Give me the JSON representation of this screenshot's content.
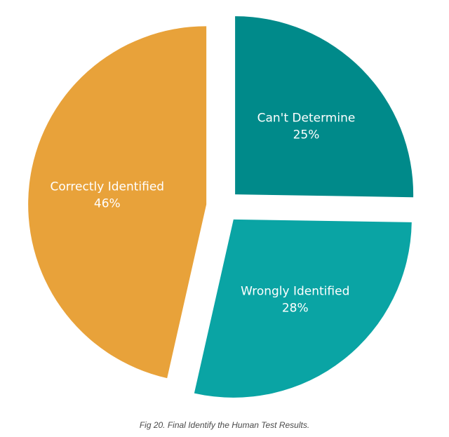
{
  "chart_data": {
    "type": "pie",
    "title": "",
    "start": "top, clockwise",
    "exploded": true,
    "slices": [
      {
        "label": "Can't Determine",
        "value": 25,
        "value_label": "25%",
        "color": "#008a8a"
      },
      {
        "label": "Wrongly Identified",
        "value": 28,
        "value_label": "28%",
        "color": "#0aa4a4"
      },
      {
        "label": "Correctly Identified",
        "value": 46,
        "value_label": "46%",
        "color": "#e8a23a"
      }
    ]
  },
  "caption": "Fig 20. Final Identify the Human Test Results."
}
